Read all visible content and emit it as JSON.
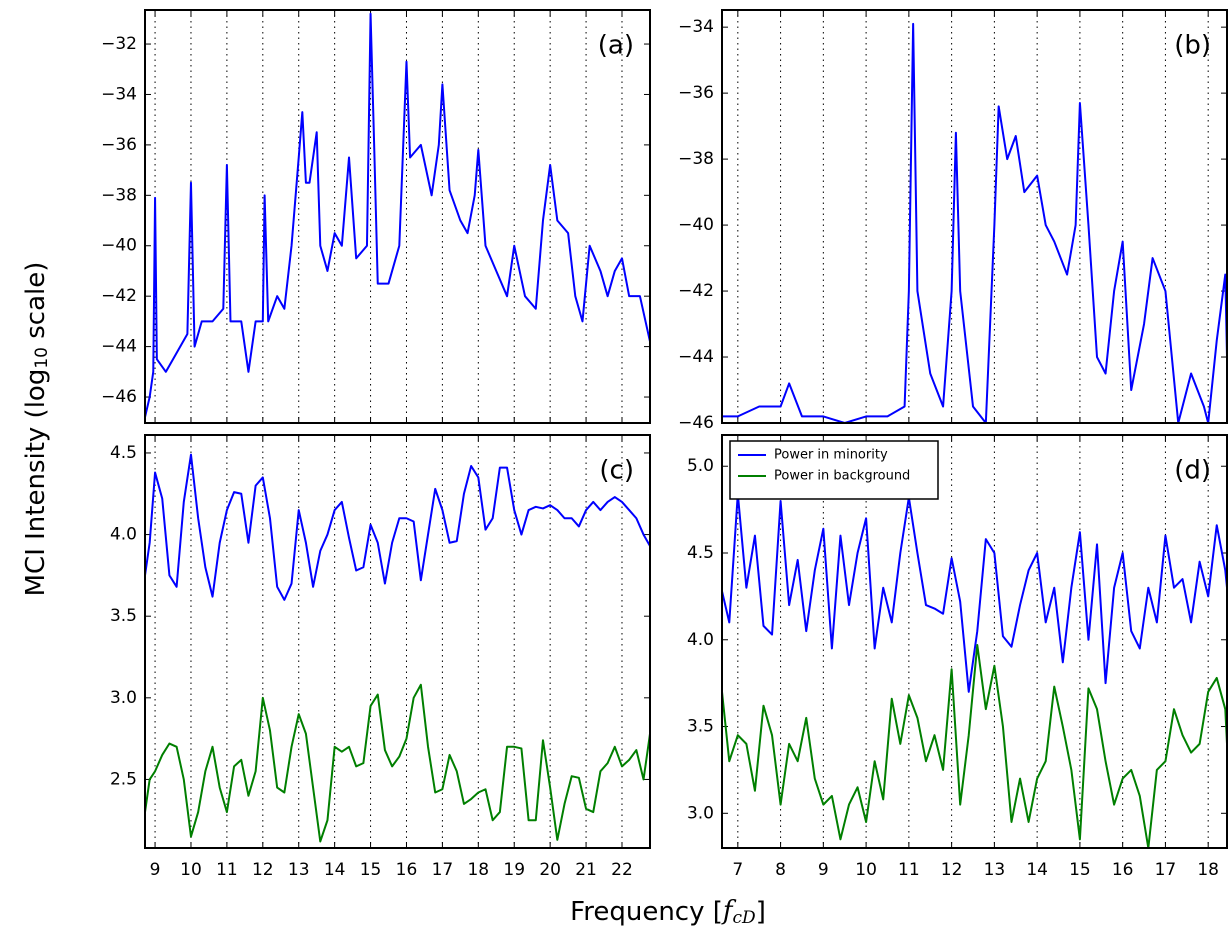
{
  "chart_data": [
    {
      "type": "line",
      "annotation": "(a)",
      "x": [
        8.72,
        8.85,
        8.95,
        9.0,
        9.05,
        9.3,
        9.5,
        9.7,
        9.9,
        10.0,
        10.1,
        10.3,
        10.6,
        10.9,
        11.0,
        11.1,
        11.4,
        11.6,
        11.8,
        12.0,
        12.05,
        12.15,
        12.4,
        12.6,
        12.8,
        13.0,
        13.1,
        13.2,
        13.3,
        13.5,
        13.6,
        13.8,
        14.0,
        14.2,
        14.4,
        14.6,
        14.9,
        15.0,
        15.1,
        15.2,
        15.5,
        15.8,
        16.0,
        16.1,
        16.4,
        16.7,
        16.9,
        17.0,
        17.2,
        17.5,
        17.7,
        17.9,
        18.0,
        18.2,
        18.5,
        18.8,
        19.0,
        19.3,
        19.6,
        19.8,
        20.0,
        20.2,
        20.5,
        20.7,
        20.9,
        21.1,
        21.4,
        21.6,
        21.8,
        22.0,
        22.2,
        22.5,
        22.78
      ],
      "series": [
        {
          "color": "#0000ff",
          "values": [
            -46.8,
            -46,
            -45,
            -38.1,
            -44.5,
            -45,
            -44.5,
            -44,
            -43.5,
            -37.5,
            -44,
            -43,
            -43,
            -42.5,
            -36.8,
            -43,
            -43,
            -45,
            -43,
            -43,
            -38,
            -43,
            -42,
            -42.5,
            -40,
            -36.5,
            -34.7,
            -37.5,
            -37.5,
            -35.5,
            -40,
            -41,
            -39.5,
            -40,
            -36.5,
            -40.5,
            -40,
            -30.8,
            -36,
            -41.5,
            -41.5,
            -40,
            -32.7,
            -36.5,
            -36,
            -38,
            -36,
            -33.6,
            -37.8,
            -39,
            -39.5,
            -38,
            -36.2,
            -40,
            -41,
            -42,
            -40,
            -42,
            -42.5,
            -39,
            -36.8,
            -39,
            -39.5,
            -42,
            -43,
            -40,
            -41,
            -42,
            -41,
            -40.5,
            -42,
            -42,
            -43.8
          ]
        }
      ],
      "ylim": [
        -47.03,
        -30.65
      ],
      "yticks": [
        {
          "value": -46,
          "label": "−46"
        },
        {
          "value": -44,
          "label": "−44"
        },
        {
          "value": -42,
          "label": "−42"
        },
        {
          "value": -40,
          "label": "−40"
        },
        {
          "value": -38,
          "label": "−38"
        },
        {
          "value": -36,
          "label": "−36"
        },
        {
          "value": -34,
          "label": "−34"
        },
        {
          "value": -32,
          "label": "−32"
        }
      ]
    },
    {
      "type": "line",
      "annotation": "(b)",
      "x": [
        6.63,
        7.0,
        7.5,
        8.0,
        8.2,
        8.5,
        9.0,
        9.5,
        10.0,
        10.5,
        10.9,
        11.0,
        11.1,
        11.2,
        11.5,
        11.8,
        12.0,
        12.1,
        12.2,
        12.5,
        12.8,
        13.0,
        13.1,
        13.3,
        13.5,
        13.7,
        14.0,
        14.2,
        14.4,
        14.7,
        14.9,
        15.0,
        15.2,
        15.4,
        15.6,
        15.8,
        16.0,
        16.2,
        16.5,
        16.7,
        17.0,
        17.3,
        17.6,
        17.9,
        18.0,
        18.2,
        18.4,
        18.44
      ],
      "series": [
        {
          "color": "#0000ff",
          "values": [
            -45.8,
            -45.8,
            -45.5,
            -45.5,
            -44.8,
            -45.8,
            -45.8,
            -46,
            -45.8,
            -45.8,
            -45.5,
            -42,
            -33.9,
            -42,
            -44.5,
            -45.5,
            -42,
            -37.2,
            -42,
            -45.5,
            -46,
            -40,
            -36.4,
            -38,
            -37.3,
            -39,
            -38.5,
            -40,
            -40.5,
            -41.5,
            -40,
            -36.3,
            -40,
            -44,
            -44.5,
            -42,
            -40.5,
            -45,
            -43,
            -41,
            -42,
            -46,
            -44.5,
            -45.5,
            -46,
            -43.5,
            -41.5,
            -44
          ]
        }
      ],
      "ylim": [
        -46,
        -33.48
      ],
      "yticks": [
        {
          "value": -46,
          "label": "−46"
        },
        {
          "value": -44,
          "label": "−44"
        },
        {
          "value": -42,
          "label": "−42"
        },
        {
          "value": -40,
          "label": "−40"
        },
        {
          "value": -38,
          "label": "−38"
        },
        {
          "value": -36,
          "label": "−36"
        },
        {
          "value": -34,
          "label": "−34"
        }
      ]
    },
    {
      "type": "line",
      "annotation": "(c)",
      "x": [
        8.72,
        8.85,
        9.0,
        9.2,
        9.4,
        9.6,
        9.8,
        10.0,
        10.2,
        10.4,
        10.6,
        10.8,
        11.0,
        11.2,
        11.4,
        11.6,
        11.8,
        12.0,
        12.2,
        12.4,
        12.6,
        12.8,
        13.0,
        13.2,
        13.4,
        13.6,
        13.8,
        14.0,
        14.2,
        14.4,
        14.6,
        14.8,
        15.0,
        15.2,
        15.4,
        15.6,
        15.8,
        16.0,
        16.2,
        16.4,
        16.6,
        16.8,
        17.0,
        17.2,
        17.4,
        17.6,
        17.8,
        18.0,
        18.2,
        18.4,
        18.6,
        18.8,
        19.0,
        19.2,
        19.4,
        19.6,
        19.8,
        20.0,
        20.2,
        20.4,
        20.6,
        20.8,
        21.0,
        21.2,
        21.4,
        21.6,
        21.8,
        22.0,
        22.2,
        22.4,
        22.6,
        22.78
      ],
      "series": [
        {
          "color": "#0000ff",
          "values": [
            3.75,
            3.95,
            4.38,
            4.22,
            3.75,
            3.68,
            4.2,
            4.49,
            4.1,
            3.8,
            3.62,
            3.95,
            4.15,
            4.26,
            4.25,
            3.95,
            4.3,
            4.35,
            4.1,
            3.68,
            3.6,
            3.7,
            4.15,
            3.95,
            3.68,
            3.9,
            4.0,
            4.15,
            4.2,
            3.98,
            3.78,
            3.8,
            4.06,
            3.95,
            3.7,
            3.95,
            4.1,
            4.1,
            4.08,
            3.72,
            4.0,
            4.28,
            4.15,
            3.95,
            3.96,
            4.25,
            4.42,
            4.35,
            4.03,
            4.1,
            4.41,
            4.41,
            4.15,
            4.0,
            4.15,
            4.17,
            4.16,
            4.18,
            4.15,
            4.1,
            4.1,
            4.05,
            4.15,
            4.2,
            4.15,
            4.2,
            4.23,
            4.2,
            4.15,
            4.1,
            4.0,
            3.93
          ]
        },
        {
          "color": "#007f00",
          "values": [
            2.3,
            2.5,
            2.55,
            2.65,
            2.72,
            2.7,
            2.5,
            2.15,
            2.3,
            2.55,
            2.7,
            2.45,
            2.3,
            2.58,
            2.62,
            2.4,
            2.55,
            3.0,
            2.8,
            2.45,
            2.42,
            2.7,
            2.9,
            2.78,
            2.45,
            2.12,
            2.25,
            2.7,
            2.67,
            2.7,
            2.58,
            2.6,
            2.95,
            3.02,
            2.68,
            2.58,
            2.64,
            2.75,
            3.0,
            3.08,
            2.7,
            2.42,
            2.44,
            2.65,
            2.55,
            2.35,
            2.38,
            2.42,
            2.44,
            2.25,
            2.3,
            2.7,
            2.7,
            2.69,
            2.25,
            2.25,
            2.74,
            2.45,
            2.13,
            2.35,
            2.52,
            2.51,
            2.32,
            2.3,
            2.55,
            2.6,
            2.7,
            2.58,
            2.62,
            2.68,
            2.5,
            2.78
          ]
        }
      ],
      "xlim": [
        8.72,
        22.78
      ],
      "ylim": [
        2.08,
        4.61
      ],
      "grid": "x",
      "xticks": [
        9,
        10,
        11,
        12,
        13,
        14,
        15,
        16,
        17,
        18,
        19,
        20,
        21,
        22
      ],
      "yticks": [
        2.5,
        {
          "value": 3,
          "label": "3.0"
        },
        3.5,
        {
          "value": 4,
          "label": "4.0"
        },
        4.5
      ]
    },
    {
      "type": "line",
      "annotation": "(d)",
      "legend": "upper left",
      "x": [
        6.63,
        6.8,
        7.0,
        7.2,
        7.4,
        7.6,
        7.8,
        8.0,
        8.2,
        8.4,
        8.6,
        8.8,
        9.0,
        9.2,
        9.4,
        9.6,
        9.8,
        10.0,
        10.2,
        10.4,
        10.6,
        10.8,
        11.0,
        11.2,
        11.4,
        11.6,
        11.8,
        12.0,
        12.2,
        12.4,
        12.6,
        12.8,
        13.0,
        13.2,
        13.4,
        13.6,
        13.8,
        14.0,
        14.2,
        14.4,
        14.6,
        14.8,
        15.0,
        15.2,
        15.4,
        15.6,
        15.8,
        16.0,
        16.2,
        16.4,
        16.6,
        16.8,
        17.0,
        17.2,
        17.4,
        17.6,
        17.8,
        18.0,
        18.2,
        18.4,
        18.44
      ],
      "series": [
        {
          "name": "Power in minority",
          "color": "#0000ff",
          "values": [
            4.28,
            4.1,
            4.84,
            4.3,
            4.6,
            4.08,
            4.03,
            4.8,
            4.2,
            4.46,
            4.05,
            4.4,
            4.64,
            3.95,
            4.6,
            4.2,
            4.5,
            4.7,
            3.95,
            4.3,
            4.1,
            4.5,
            4.82,
            4.5,
            4.2,
            4.18,
            4.15,
            4.47,
            4.22,
            3.7,
            4.05,
            4.58,
            4.5,
            4.02,
            3.96,
            4.2,
            4.4,
            4.5,
            4.1,
            4.3,
            3.87,
            4.3,
            4.62,
            4.0,
            4.55,
            3.75,
            4.3,
            4.5,
            4.05,
            3.95,
            4.3,
            4.1,
            4.6,
            4.3,
            4.35,
            4.1,
            4.45,
            4.25,
            4.66,
            4.4,
            4.3
          ]
        },
        {
          "name": "Power in background",
          "color": "#007f00",
          "values": [
            3.7,
            3.3,
            3.45,
            3.4,
            3.13,
            3.62,
            3.45,
            3.05,
            3.4,
            3.3,
            3.55,
            3.2,
            3.05,
            3.1,
            2.85,
            3.05,
            3.15,
            2.95,
            3.3,
            3.08,
            3.66,
            3.4,
            3.68,
            3.55,
            3.3,
            3.45,
            3.25,
            3.83,
            3.05,
            3.45,
            3.97,
            3.6,
            3.85,
            3.5,
            2.95,
            3.2,
            2.95,
            3.2,
            3.3,
            3.73,
            3.5,
            3.25,
            2.85,
            3.72,
            3.6,
            3.3,
            3.05,
            3.2,
            3.25,
            3.1,
            2.8,
            3.25,
            3.3,
            3.6,
            3.45,
            3.35,
            3.4,
            3.7,
            3.78,
            3.6,
            3.4
          ]
        }
      ],
      "xlim": [
        6.63,
        18.44
      ],
      "ylim": [
        2.8,
        5.18
      ],
      "grid": "x",
      "xticks": [
        7,
        8,
        9,
        10,
        11,
        12,
        13,
        14,
        15,
        16,
        17,
        18
      ],
      "yticks": [
        {
          "value": 3,
          "label": "3.0"
        },
        3.5,
        {
          "value": 4,
          "label": "4.0"
        },
        4.5,
        {
          "value": 5,
          "label": "5.0"
        }
      ]
    }
  ],
  "xlabel": [
    "Frequency ",
    "[",
    "f",
    "cD",
    "]"
  ],
  "ylabel": [
    "MCI Intensity (log",
    "10",
    " scale)"
  ]
}
